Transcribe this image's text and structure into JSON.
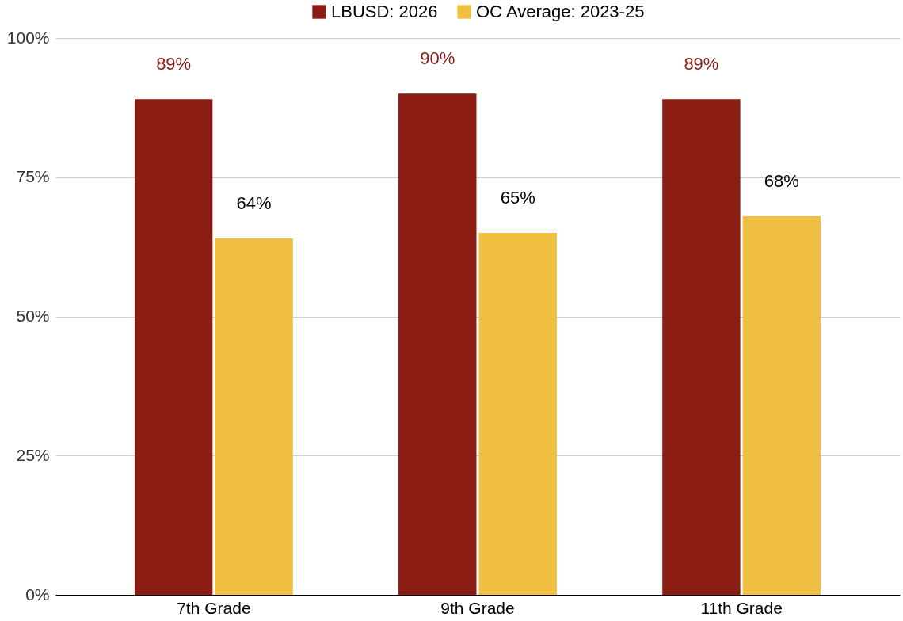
{
  "chart_data": {
    "type": "bar",
    "categories": [
      "7th Grade",
      "9th Grade",
      "11th Grade"
    ],
    "series": [
      {
        "name": "LBUSD: 2026",
        "color": "#8b1c13",
        "values": [
          89,
          90,
          89
        ]
      },
      {
        "name": "OC Average: 2023-25",
        "color": "#f0bf41",
        "values": [
          64,
          65,
          68
        ]
      }
    ],
    "ylim": [
      0,
      100
    ],
    "yticks": [
      {
        "value": 0,
        "label": "0%"
      },
      {
        "value": 25,
        "label": "25%"
      },
      {
        "value": 50,
        "label": "50%"
      },
      {
        "value": 75,
        "label": "75%"
      },
      {
        "value": 100,
        "label": "100%"
      }
    ],
    "value_labels": [
      [
        "89%",
        "90%",
        "89%"
      ],
      [
        "64%",
        "65%",
        "68%"
      ]
    ],
    "grid": "y",
    "legend": "top"
  }
}
